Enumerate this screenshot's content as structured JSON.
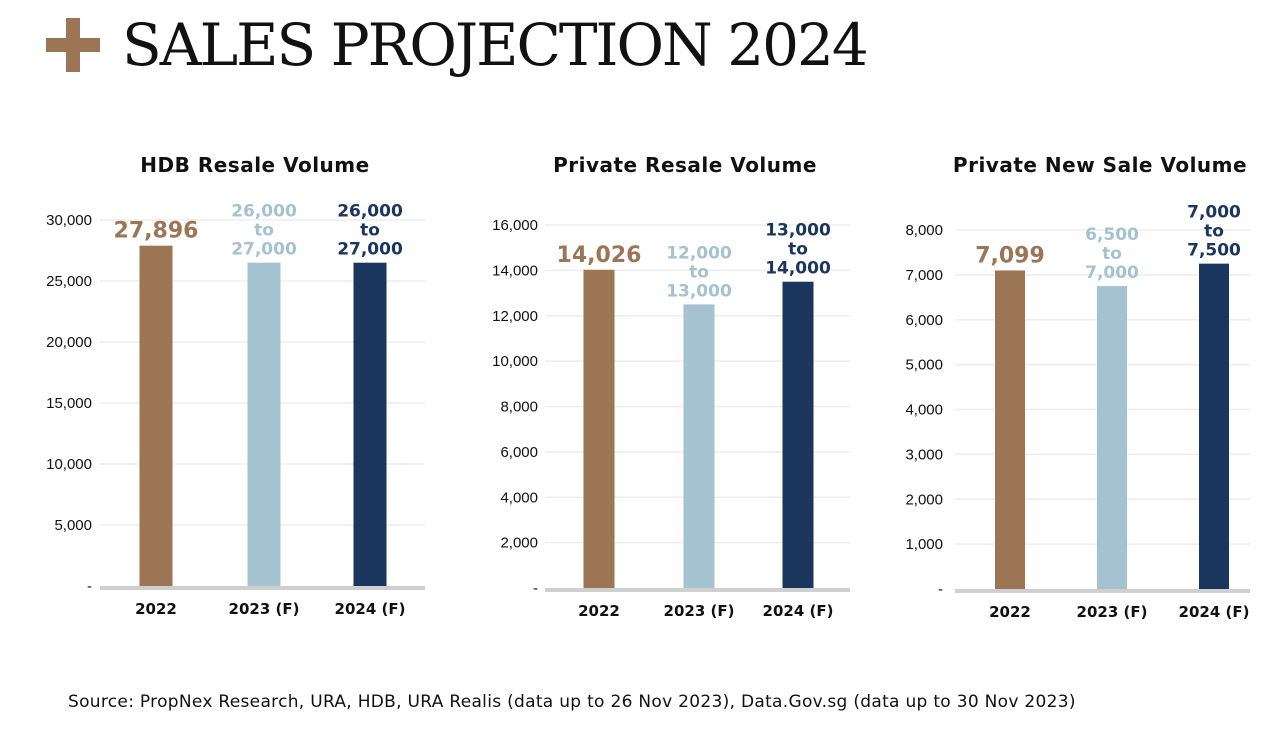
{
  "page": {
    "title": "SALES PROJECTION 2024",
    "source": "Source: PropNex Research, URA, HDB, URA Realis (data up to 26 Nov 2023), Data.Gov.sg (data up to 30 Nov 2023)",
    "accent_color": "#9c7555"
  },
  "chart_data": [
    {
      "type": "bar",
      "title": "HDB Resale Volume",
      "categories": [
        "2022",
        "2023 (F)",
        "2024 (F)"
      ],
      "values": [
        27896,
        26500,
        26500
      ],
      "colors": [
        "#9c7555",
        "#a4c2cf",
        "#1a355e"
      ],
      "data_labels": [
        [
          "27,896"
        ],
        [
          "26,000",
          "to",
          "27,000"
        ],
        [
          "26,000",
          "to",
          "27,000"
        ]
      ],
      "ylim": [
        0,
        30000
      ],
      "yticks": [
        0,
        5000,
        10000,
        15000,
        20000,
        25000,
        30000
      ],
      "ytick_labels": [
        "-",
        "5,000",
        "10,000",
        "15,000",
        "20,000",
        "25,000",
        "30,000"
      ],
      "grid": true
    },
    {
      "type": "bar",
      "title": "Private Resale Volume",
      "categories": [
        "2022",
        "2023 (F)",
        "2024 (F)"
      ],
      "values": [
        14026,
        12500,
        13500
      ],
      "colors": [
        "#9c7555",
        "#a4c2cf",
        "#1a355e"
      ],
      "data_labels": [
        [
          "14,026"
        ],
        [
          "12,000",
          "to",
          "13,000"
        ],
        [
          "13,000",
          "to",
          "14,000"
        ]
      ],
      "ylim": [
        0,
        16000
      ],
      "yticks": [
        0,
        2000,
        4000,
        6000,
        8000,
        10000,
        12000,
        14000,
        16000
      ],
      "ytick_labels": [
        "-",
        "2,000",
        "4,000",
        "6,000",
        "8,000",
        "10,000",
        "12,000",
        "14,000",
        "16,000"
      ],
      "grid": true
    },
    {
      "type": "bar",
      "title": "Private New Sale Volume",
      "categories": [
        "2022",
        "2023 (F)",
        "2024 (F)"
      ],
      "values": [
        7099,
        6750,
        7250
      ],
      "colors": [
        "#9c7555",
        "#a4c2cf",
        "#1a355e"
      ],
      "data_labels": [
        [
          "7,099"
        ],
        [
          "6,500",
          "to",
          "7,000"
        ],
        [
          "7,000",
          "to",
          "7,500"
        ]
      ],
      "ylim": [
        0,
        8000
      ],
      "yticks": [
        0,
        1000,
        2000,
        3000,
        4000,
        5000,
        6000,
        7000,
        8000
      ],
      "ytick_labels": [
        "-",
        "1,000",
        "2,000",
        "3,000",
        "4,000",
        "5,000",
        "6,000",
        "7,000",
        "8,000"
      ],
      "grid": true
    }
  ]
}
